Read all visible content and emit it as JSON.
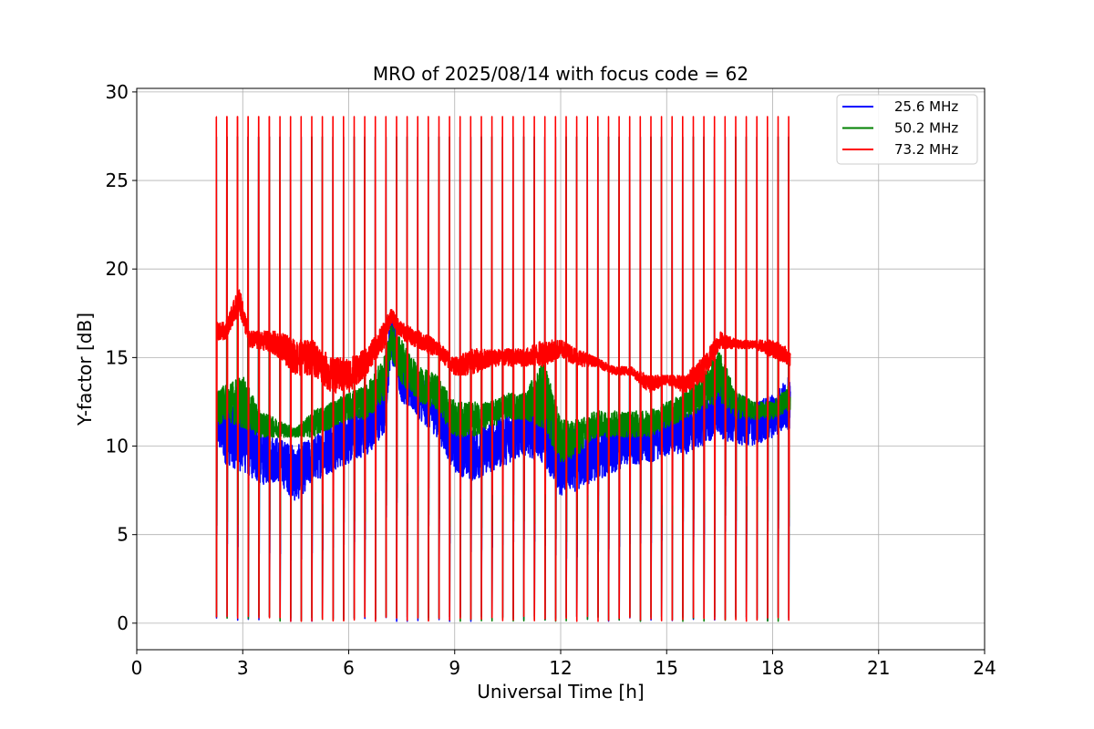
{
  "chart_data": {
    "type": "line",
    "title": "MRO of 2025/08/14 with focus code = 62",
    "xlabel": "Universal Time [h]",
    "ylabel": "Y-factor [dB]",
    "xlim": [
      0,
      24
    ],
    "ylim": [
      -1.5,
      30.2
    ],
    "xticks": [
      0,
      3,
      6,
      9,
      12,
      15,
      18,
      21,
      24
    ],
    "yticks": [
      0,
      5,
      10,
      15,
      20,
      25,
      30
    ],
    "grid": true,
    "legend_position": "top-right",
    "x_range_of_data": [
      2.25,
      18.5
    ],
    "calibration_pulses": {
      "start_hour": 2.25,
      "period_hours": 0.3,
      "count": 55,
      "peak_value": 28.6,
      "baseline_value": 0.1
    },
    "series": [
      {
        "name": "25.6 MHz",
        "color": "#0000ff",
        "baseline_envelope": {
          "x": [
            2.25,
            2.5,
            3.0,
            3.5,
            4.0,
            4.5,
            5.0,
            5.5,
            6.0,
            6.5,
            7.0,
            7.2,
            7.5,
            8.0,
            8.5,
            9.0,
            9.5,
            10.0,
            10.5,
            11.0,
            11.5,
            12.0,
            12.5,
            13.0,
            13.5,
            14.0,
            14.5,
            15.0,
            15.5,
            16.0,
            16.5,
            17.0,
            17.5,
            18.0,
            18.5
          ],
          "low": [
            10.0,
            9.0,
            8.5,
            7.8,
            8.0,
            6.8,
            8.0,
            8.5,
            9.0,
            9.5,
            10.5,
            15.0,
            12.5,
            11.5,
            10.5,
            8.5,
            8.0,
            8.5,
            9.0,
            9.5,
            9.0,
            7.2,
            7.5,
            8.0,
            8.5,
            9.0,
            9.0,
            9.5,
            9.5,
            10.0,
            10.5,
            10.0,
            10.0,
            10.5,
            11.0
          ],
          "high": [
            12.5,
            13.0,
            12.5,
            11.0,
            10.5,
            10.0,
            10.5,
            11.5,
            12.0,
            12.5,
            13.5,
            18.0,
            15.5,
            14.0,
            13.0,
            11.5,
            11.0,
            11.5,
            12.0,
            12.5,
            14.0,
            11.0,
            11.0,
            11.0,
            11.5,
            11.5,
            11.5,
            12.0,
            12.0,
            12.5,
            14.0,
            13.0,
            12.5,
            13.0,
            14.0
          ]
        }
      },
      {
        "name": "50.2 MHz",
        "color": "#008000",
        "baseline_envelope": {
          "x": [
            2.25,
            2.5,
            3.0,
            3.5,
            4.0,
            4.5,
            5.0,
            5.5,
            6.0,
            6.5,
            7.0,
            7.2,
            7.5,
            8.0,
            8.5,
            9.0,
            9.5,
            10.0,
            10.5,
            11.0,
            11.5,
            12.0,
            12.5,
            13.0,
            13.5,
            14.0,
            14.5,
            15.0,
            15.5,
            16.0,
            16.5,
            17.0,
            17.5,
            18.0,
            18.5
          ],
          "low": [
            11.0,
            11.5,
            11.0,
            10.5,
            10.5,
            10.5,
            10.5,
            11.0,
            11.5,
            11.5,
            12.5,
            15.0,
            13.5,
            12.5,
            12.0,
            10.5,
            10.5,
            11.0,
            11.5,
            11.5,
            11.0,
            9.0,
            9.5,
            10.5,
            10.5,
            10.5,
            10.5,
            11.0,
            11.5,
            12.0,
            12.5,
            11.5,
            11.5,
            11.5,
            12.0
          ],
          "high": [
            13.0,
            13.5,
            14.0,
            12.0,
            11.5,
            11.0,
            12.0,
            12.5,
            13.0,
            13.5,
            15.0,
            17.0,
            16.0,
            14.5,
            14.0,
            12.5,
            12.5,
            12.5,
            13.0,
            13.0,
            15.0,
            11.5,
            11.5,
            12.0,
            12.0,
            12.0,
            12.0,
            12.5,
            13.0,
            14.0,
            15.5,
            13.0,
            12.5,
            12.5,
            13.5
          ]
        }
      },
      {
        "name": "73.2 MHz",
        "color": "#ff0000",
        "baseline_envelope": {
          "x": [
            2.25,
            2.5,
            2.9,
            3.2,
            3.5,
            4.0,
            4.5,
            5.0,
            5.5,
            6.0,
            6.5,
            7.0,
            7.2,
            7.5,
            8.0,
            8.5,
            9.0,
            9.5,
            10.0,
            10.5,
            11.0,
            11.5,
            12.0,
            12.5,
            13.0,
            13.5,
            14.0,
            14.5,
            15.0,
            15.5,
            16.0,
            16.5,
            17.0,
            17.5,
            18.0,
            18.5
          ],
          "low": [
            16.0,
            16.0,
            17.5,
            15.5,
            15.5,
            15.0,
            14.0,
            14.0,
            13.0,
            13.0,
            14.0,
            15.5,
            17.0,
            16.0,
            15.5,
            15.0,
            14.0,
            14.0,
            14.5,
            14.5,
            14.5,
            14.5,
            15.0,
            14.5,
            14.5,
            14.0,
            14.0,
            13.0,
            13.5,
            13.0,
            13.5,
            15.5,
            15.5,
            15.5,
            15.0,
            14.5
          ],
          "high": [
            17.0,
            17.0,
            19.0,
            16.5,
            16.5,
            16.5,
            16.0,
            16.0,
            15.0,
            15.0,
            15.5,
            17.0,
            17.8,
            17.0,
            16.5,
            16.0,
            15.0,
            15.5,
            15.5,
            15.5,
            15.5,
            16.0,
            16.0,
            15.5,
            15.0,
            14.5,
            14.5,
            14.0,
            14.0,
            14.0,
            15.0,
            16.5,
            16.0,
            16.0,
            16.0,
            15.5
          ]
        }
      }
    ]
  }
}
